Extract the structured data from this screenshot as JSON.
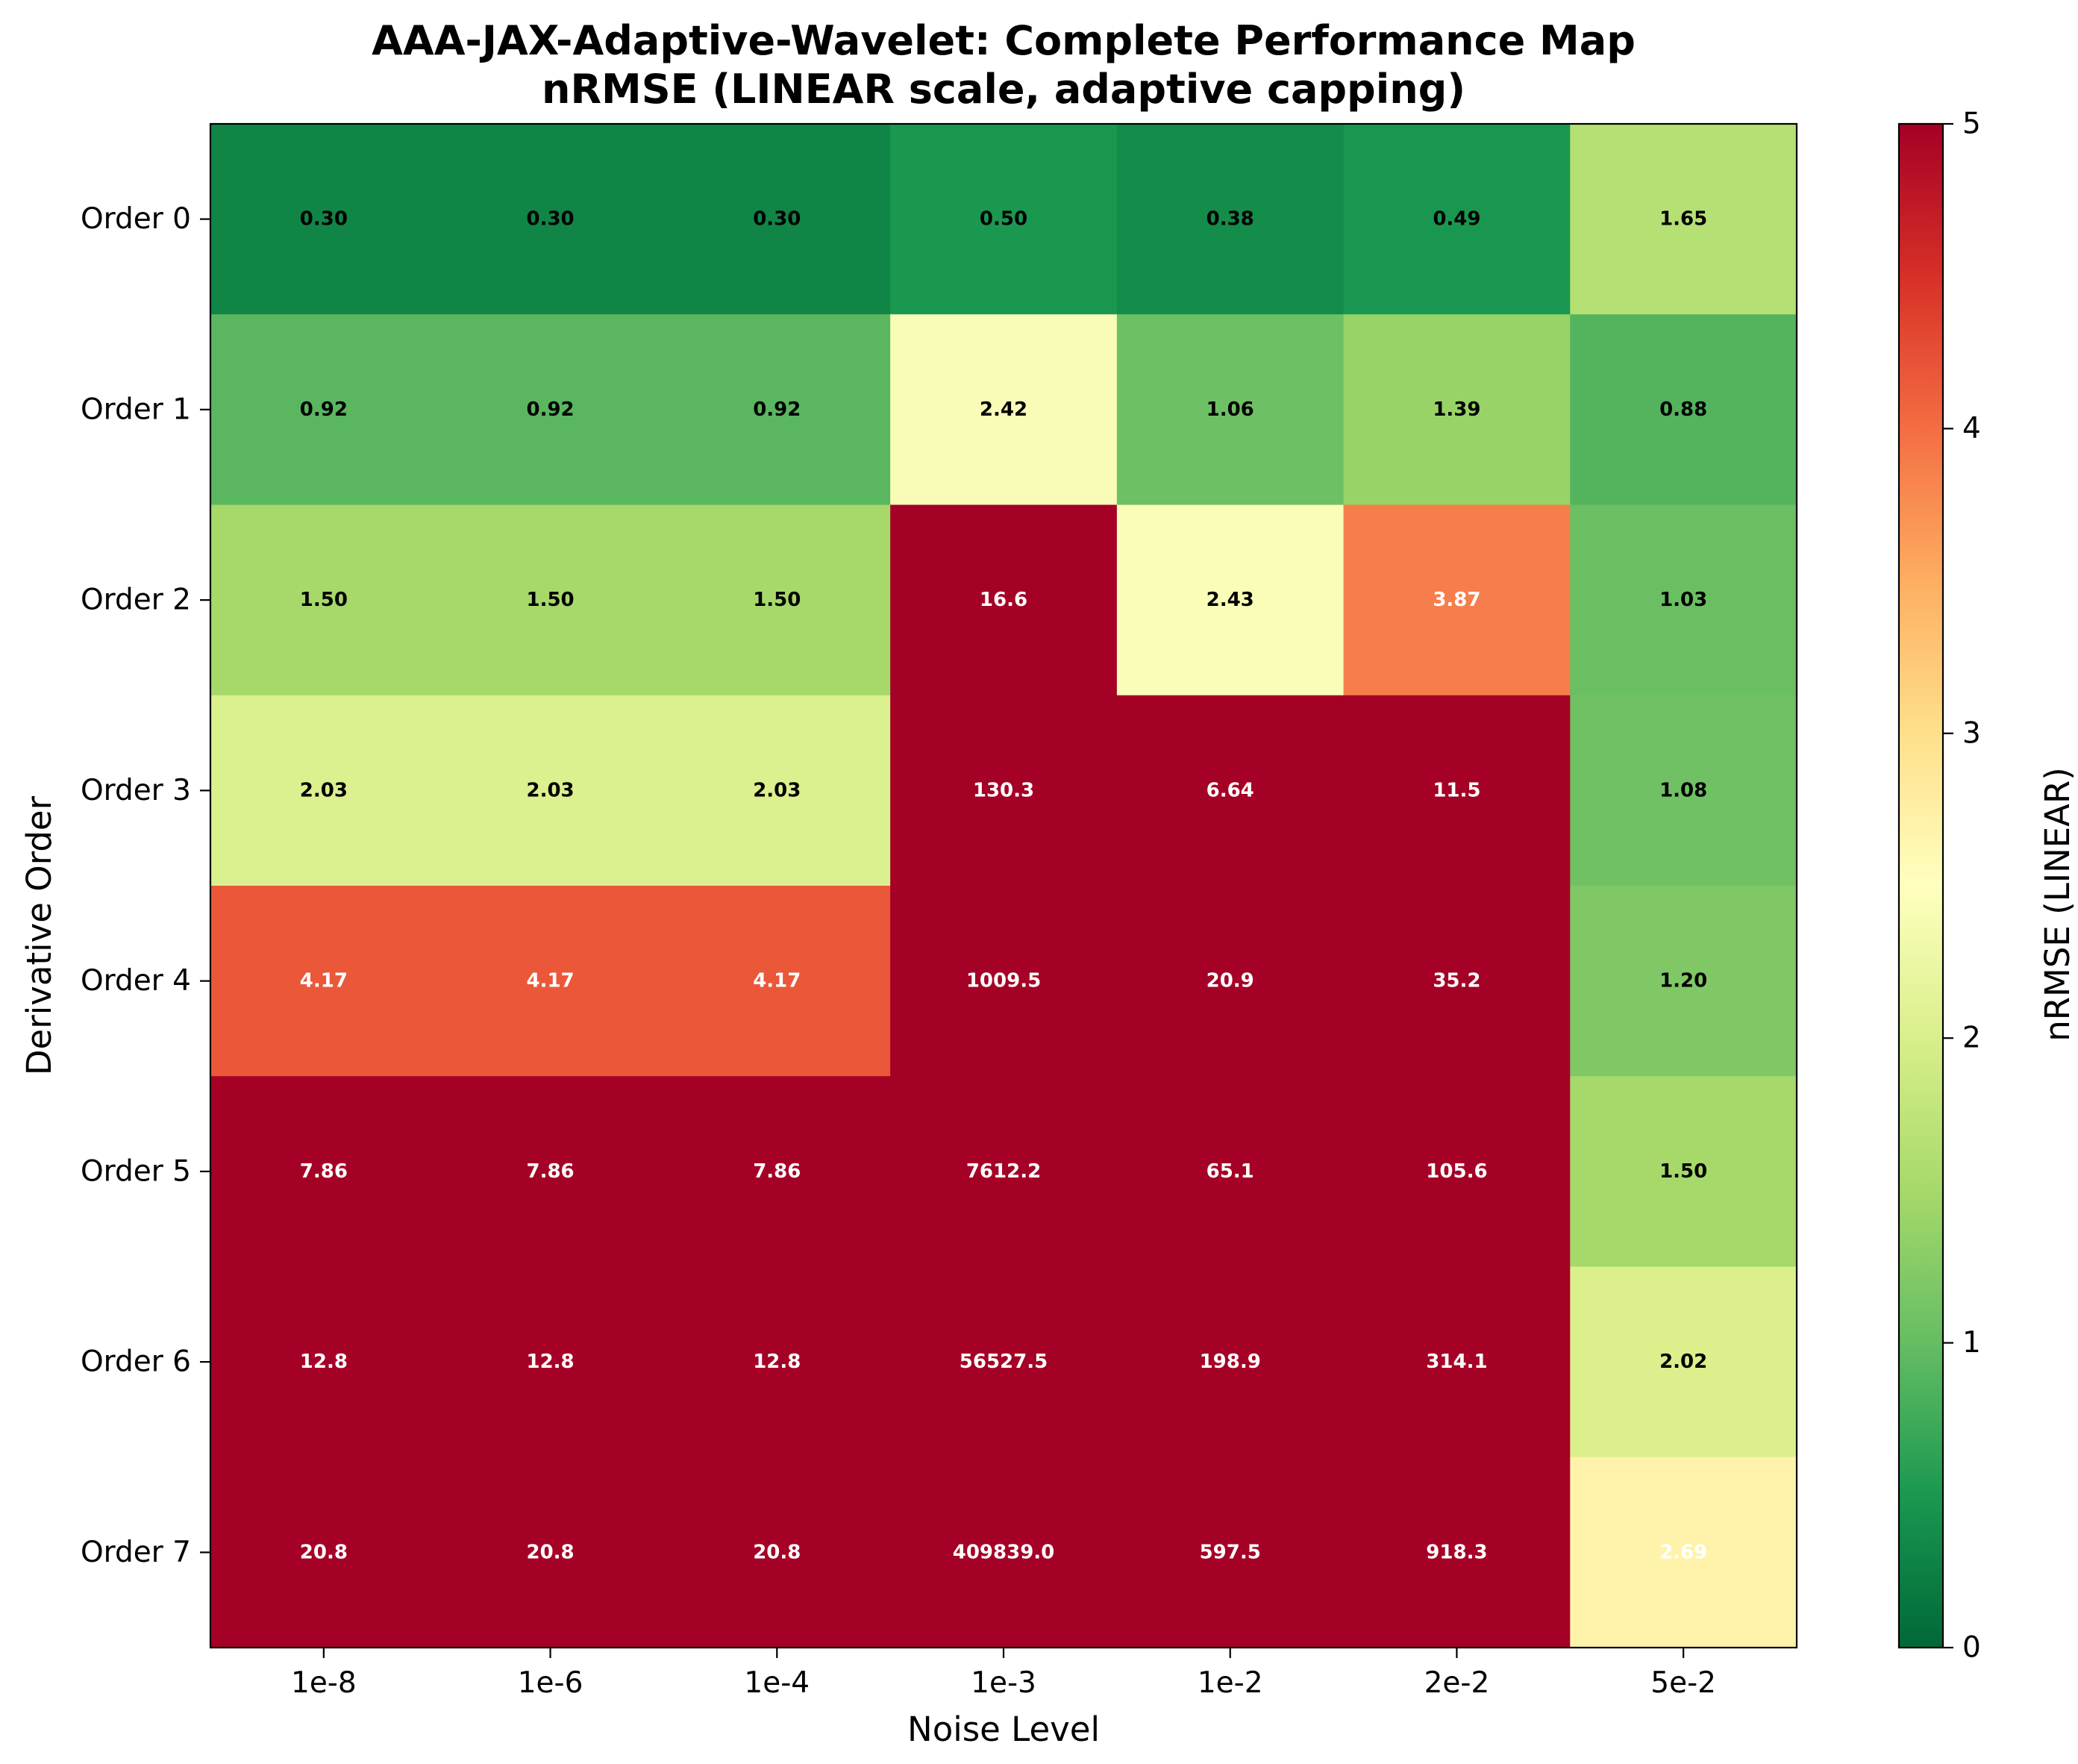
{
  "chart_data": {
    "type": "heatmap",
    "title": "AAA-JAX-Adaptive-Wavelet: Complete Performance Map",
    "subtitle": "nRMSE (LINEAR scale, adaptive capping)",
    "xlabel": "Noise Level",
    "ylabel": "Derivative Order",
    "x_categories": [
      "1e-8",
      "1e-6",
      "1e-4",
      "1e-3",
      "1e-2",
      "2e-2",
      "5e-2"
    ],
    "y_categories": [
      "Order 0",
      "Order 1",
      "Order 2",
      "Order 3",
      "Order 4",
      "Order 5",
      "Order 6",
      "Order 7"
    ],
    "values": [
      [
        0.3,
        0.3,
        0.3,
        0.5,
        0.38,
        0.49,
        1.65
      ],
      [
        0.92,
        0.92,
        0.92,
        2.42,
        1.06,
        1.39,
        0.88
      ],
      [
        1.5,
        1.5,
        1.5,
        16.6,
        2.43,
        3.87,
        1.03
      ],
      [
        2.03,
        2.03,
        2.03,
        130.3,
        6.64,
        11.5,
        1.08
      ],
      [
        4.17,
        4.17,
        4.17,
        1009.5,
        20.9,
        35.2,
        1.2
      ],
      [
        7.86,
        7.86,
        7.86,
        7612.2,
        65.1,
        105.6,
        1.5
      ],
      [
        12.8,
        12.8,
        12.8,
        56527.5,
        198.9,
        314.1,
        2.02
      ],
      [
        20.8,
        20.8,
        20.8,
        409839.0,
        597.5,
        918.3,
        2.69
      ]
    ],
    "cell_labels": [
      [
        "0.30",
        "0.30",
        "0.30",
        "0.50",
        "0.38",
        "0.49",
        "1.65"
      ],
      [
        "0.92",
        "0.92",
        "0.92",
        "2.42",
        "1.06",
        "1.39",
        "0.88"
      ],
      [
        "1.50",
        "1.50",
        "1.50",
        "16.6",
        "2.43",
        "3.87",
        "1.03"
      ],
      [
        "2.03",
        "2.03",
        "2.03",
        "130.3",
        "6.64",
        "11.5",
        "1.08"
      ],
      [
        "4.17",
        "4.17",
        "4.17",
        "1009.5",
        "20.9",
        "35.2",
        "1.20"
      ],
      [
        "7.86",
        "7.86",
        "7.86",
        "7612.2",
        "65.1",
        "105.6",
        "1.50"
      ],
      [
        "12.8",
        "12.8",
        "12.8",
        "56527.5",
        "198.9",
        "314.1",
        "2.02"
      ],
      [
        "20.8",
        "20.8",
        "20.8",
        "409839.0",
        "597.5",
        "918.3",
        "2.69"
      ]
    ],
    "colormap": "RdYlGn_r",
    "color_range": [
      0,
      5
    ],
    "colorbar": {
      "label": "nRMSE (LINEAR)",
      "ticks": [
        "0",
        "1",
        "2",
        "3",
        "4",
        "5"
      ],
      "range": [
        0,
        5
      ]
    },
    "grid": false,
    "legend": "none"
  }
}
